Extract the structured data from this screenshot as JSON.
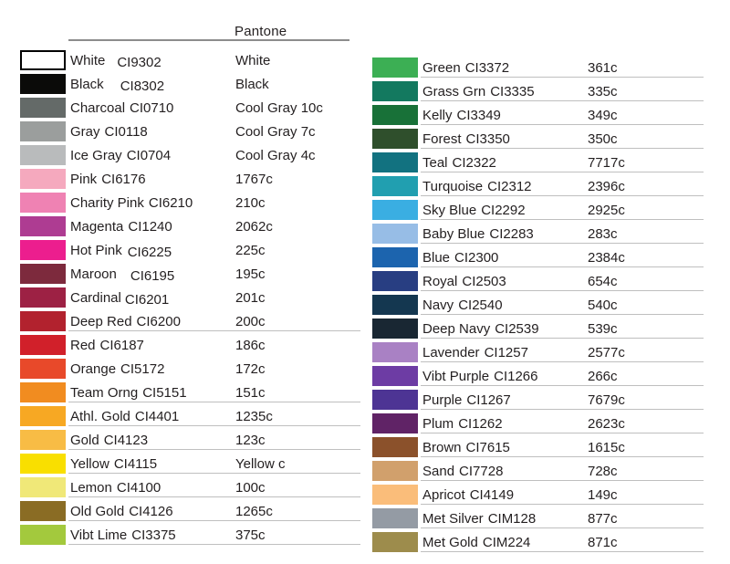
{
  "chart_data": {
    "type": "table",
    "header": {
      "pantone_label": "Pantone"
    },
    "column_semantics": [
      "swatch",
      "name",
      "code",
      "pantone"
    ],
    "columns": [
      {
        "id": "left",
        "rows": [
          {
            "name": "White",
            "code": "CI9302",
            "pantone": "White",
            "hex": "#ffffff",
            "border": true,
            "gap": 13,
            "code_drop": true
          },
          {
            "name": "Black",
            "code": "CI8302",
            "pantone": "Black",
            "hex": "#0b0b09",
            "gap": 18,
            "code_drop": true
          },
          {
            "name": "Charcoal",
            "code": "CI0710",
            "pantone": "Cool Gray 10c",
            "hex": "#646a68"
          },
          {
            "name": "Gray",
            "code": "CI0118",
            "pantone": "Cool Gray 7c",
            "hex": "#9b9e9d"
          },
          {
            "name": "Ice Gray",
            "code": "CI0704",
            "pantone": "Cool Gray 4c",
            "hex": "#b9bbbc"
          },
          {
            "name": "Pink",
            "code": "CI6176",
            "pantone": "1767c",
            "hex": "#f5a9be"
          },
          {
            "name": "Charity Pink",
            "code": "CI6210",
            "pantone": "210c",
            "hex": "#ef82b3"
          },
          {
            "name": "Magenta",
            "code": "CI1240",
            "pantone": "2062c",
            "hex": "#ae3c92"
          },
          {
            "name": "Hot Pink",
            "code": "CI6225",
            "pantone": "225c",
            "hex": "#ec1e8e",
            "gap": 6,
            "code_drop": true
          },
          {
            "name": "Maroon",
            "code": "CI6195",
            "pantone": "195c",
            "hex": "#7d2a3d",
            "gap": 15,
            "code_drop": true
          },
          {
            "name": "Cardinal",
            "code": "CI6201",
            "pantone": "201c",
            "hex": "#9d2144",
            "gap": 4,
            "code_drop": true
          },
          {
            "name": "Deep Red",
            "code": "CI6200",
            "pantone": "200c",
            "hex": "#b2222e",
            "underline": true
          },
          {
            "name": "Red",
            "code": "CI6187",
            "pantone": "186c",
            "hex": "#d1202a"
          },
          {
            "name": "Orange",
            "code": "CI5172",
            "pantone": "172c",
            "hex": "#e8492a"
          },
          {
            "name": "Team Orng",
            "code": "CI5151",
            "pantone": "151c",
            "hex": "#f18c20",
            "underline": true
          },
          {
            "name": "Athl. Gold",
            "code": "CI4401",
            "pantone": "1235c",
            "hex": "#f7a823",
            "underline": true
          },
          {
            "name": "Gold",
            "code": "CI4123",
            "pantone": "123c",
            "hex": "#f8bc45",
            "underline": true
          },
          {
            "name": "Yellow",
            "code": "CI4115",
            "pantone": "Yellow c",
            "hex": "#f9df00",
            "underline": true
          },
          {
            "name": "Lemon",
            "code": "CI4100",
            "pantone": "100c",
            "hex": "#f0e878",
            "underline": true
          },
          {
            "name": "Old Gold",
            "code": "CI4126",
            "pantone": "1265c",
            "hex": "#8a6c24",
            "underline": true
          },
          {
            "name": "Vibt Lime",
            "code": "CI3375",
            "pantone": "375c",
            "hex": "#a3c93d",
            "underline": true
          }
        ]
      },
      {
        "id": "right",
        "rows": [
          {
            "name": "Green",
            "code": "CI3372",
            "pantone": "361c",
            "hex": "#3caf54",
            "underline": true
          },
          {
            "name": "Grass Grn",
            "code": "CI3335",
            "pantone": "335c",
            "hex": "#13795f",
            "underline": true
          },
          {
            "name": "Kelly",
            "code": "CI3349",
            "pantone": "349c",
            "hex": "#187138",
            "underline": true
          },
          {
            "name": "Forest",
            "code": "CI3350",
            "pantone": "350c",
            "hex": "#2f4f2c",
            "underline": true
          },
          {
            "name": "Teal",
            "code": "CI2322",
            "pantone": "7717c",
            "hex": "#127280",
            "underline": true
          },
          {
            "name": "Turquoise",
            "code": "CI2312",
            "pantone": "2396c",
            "hex": "#219fb0",
            "underline": true
          },
          {
            "name": "Sky Blue",
            "code": "CI2292",
            "pantone": "2925c",
            "hex": "#3aaee2",
            "underline": true
          },
          {
            "name": "Baby Blue",
            "code": "CI2283",
            "pantone": "283c",
            "hex": "#97bde6",
            "underline": true
          },
          {
            "name": "Blue",
            "code": "CI2300",
            "pantone": "2384c",
            "hex": "#1c64ae",
            "underline": true
          },
          {
            "name": "Royal",
            "code": "CI2503",
            "pantone": "654c",
            "hex": "#283e82",
            "underline": true
          },
          {
            "name": "Navy",
            "code": "CI2540",
            "pantone": "540c",
            "hex": "#143750",
            "underline": true
          },
          {
            "name": "Deep Navy",
            "code": "CI2539",
            "pantone": "539c",
            "hex": "#192733",
            "underline": true
          },
          {
            "name": "Lavender",
            "code": "CI1257",
            "pantone": "2577c",
            "hex": "#a981c4",
            "underline": true
          },
          {
            "name": "Vibt Purple",
            "code": "CI1266",
            "pantone": "266c",
            "hex": "#6d3ca4",
            "underline": true
          },
          {
            "name": "Purple",
            "code": "CI1267",
            "pantone": "7679c",
            "hex": "#4d3494",
            "underline": true
          },
          {
            "name": "Plum",
            "code": "CI1262",
            "pantone": "2623c",
            "hex": "#602366",
            "underline": true
          },
          {
            "name": "Brown",
            "code": "CI7615",
            "pantone": "1615c",
            "hex": "#8b512b",
            "underline": true
          },
          {
            "name": "Sand",
            "code": "CI7728",
            "pantone": "728c",
            "hex": "#d1a06c",
            "underline": true
          },
          {
            "name": "Apricot",
            "code": "CI4149",
            "pantone": "149c",
            "hex": "#fabd7a",
            "underline": true
          },
          {
            "name": "Met Silver",
            "code": "CIM128",
            "pantone": "877c",
            "hex": "#949ba4",
            "underline": true
          },
          {
            "name": "Met Gold",
            "code": "CIM224",
            "pantone": "871c",
            "hex": "#9d8c4c",
            "underline": true
          }
        ]
      }
    ]
  },
  "style": {
    "text_color": "#231f20",
    "divider_color": "#bfbfbf",
    "header_rule_color": "#8c8c8c",
    "swatch_border_color": "#000000",
    "background_color": "#ffffff"
  }
}
